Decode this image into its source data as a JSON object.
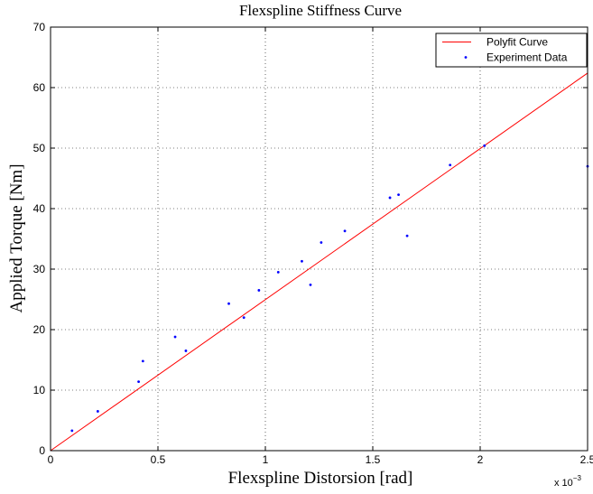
{
  "chart_data": {
    "type": "scatter",
    "title": "Flexspline Stiffness Curve",
    "xlabel": "Flexspline Distorsion [rad]",
    "ylabel": "Applied Torque [Nm]",
    "x_exponent_label": {
      "base": "x 10",
      "exponent": "−3"
    },
    "xlim": [
      0,
      2.5
    ],
    "ylim": [
      0,
      70
    ],
    "x_ticks": [
      "0",
      "0.5",
      "1",
      "1.5",
      "2",
      "2.5"
    ],
    "y_ticks": [
      "0",
      "10",
      "20",
      "30",
      "40",
      "50",
      "60",
      "70"
    ],
    "grid": true,
    "legend": {
      "position": "top-right",
      "entries": [
        "Polyfit Curve",
        "Experiment Data"
      ]
    },
    "series": [
      {
        "name": "Polyfit Curve",
        "kind": "line",
        "color": "#ff0000",
        "x": [
          0,
          2.5
        ],
        "y": [
          0,
          62.4
        ]
      },
      {
        "name": "Experiment Data",
        "kind": "points",
        "color": "#0000ff",
        "x": [
          0.1,
          0.22,
          0.41,
          0.43,
          0.58,
          0.63,
          0.83,
          0.9,
          0.97,
          1.06,
          1.17,
          1.21,
          1.26,
          1.37,
          1.58,
          1.62,
          1.66,
          1.86,
          2.02,
          2.5
        ],
        "y": [
          3.3,
          6.5,
          11.4,
          14.8,
          18.8,
          16.5,
          24.3,
          22.0,
          26.5,
          29.5,
          31.3,
          27.4,
          34.4,
          36.3,
          41.8,
          42.3,
          35.5,
          47.2,
          50.4,
          47.0
        ]
      }
    ]
  }
}
